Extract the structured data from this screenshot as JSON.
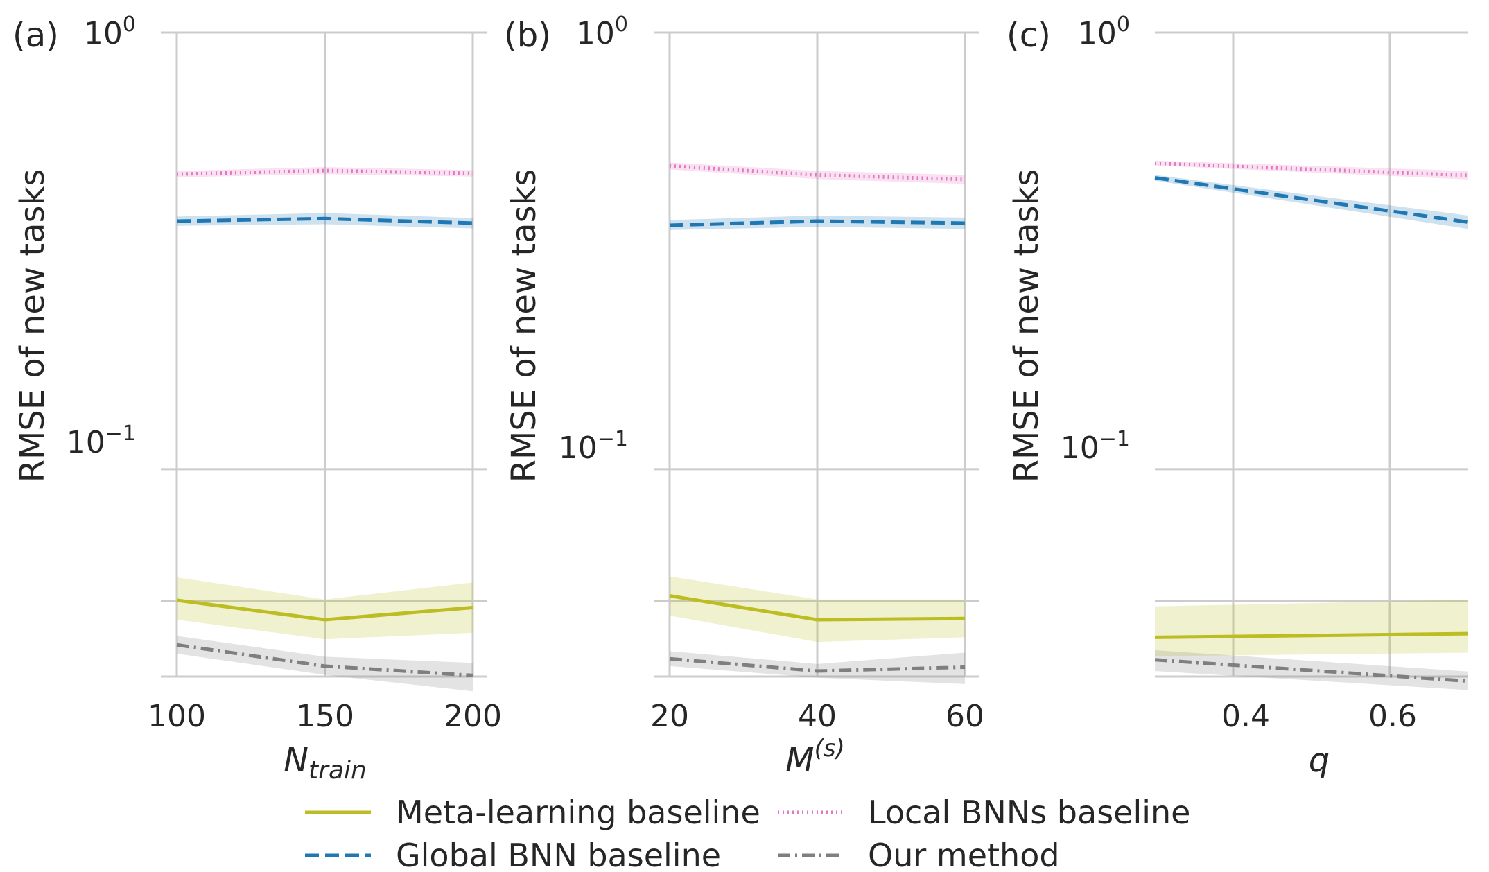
{
  "colors": {
    "meta": "#bcbd22",
    "global": "#1f77b4",
    "local": "#e377c2",
    "ours": "#7f7f7f",
    "grid": "#cccccc",
    "text": "#262626"
  },
  "legend": {
    "entries": [
      {
        "key": "meta",
        "label": "Meta-learning baseline"
      },
      {
        "key": "local",
        "label": "Local BNNs baseline"
      },
      {
        "key": "global",
        "label": "Global BNN baseline"
      },
      {
        "key": "ours",
        "label": "Our method"
      }
    ]
  },
  "chart_data": [
    {
      "type": "line",
      "panel": "(a)",
      "xlabel": "N_train",
      "xlabel_main": "N",
      "xlabel_sub": "train",
      "ylabel": "RMSE of new tasks",
      "yscale": "log",
      "ylim": [
        0.0335,
        1.0
      ],
      "y_ticks": [
        {
          "value": 1.0,
          "base": "10",
          "exp": "0"
        },
        {
          "value": 0.1,
          "base": "10",
          "exp": "−1"
        }
      ],
      "y_minor_grid": [
        0.05
      ],
      "xlim": [
        100,
        200
      ],
      "x_ticks": [
        100,
        150,
        200
      ],
      "x_tick_labels": [
        "100",
        "150",
        "200"
      ],
      "series": [
        {
          "key": "meta",
          "name": "Meta-learning baseline",
          "x": [
            100,
            150,
            200
          ],
          "values": [
            0.0501,
            0.0452,
            0.0482
          ],
          "lower": [
            0.0452,
            0.0408,
            0.0422
          ],
          "upper": [
            0.0565,
            0.0503,
            0.055
          ]
        },
        {
          "key": "global",
          "name": "Global BNN baseline",
          "x": [
            100,
            150,
            200
          ],
          "values": [
            0.37,
            0.375,
            0.366
          ],
          "lower": [
            0.361,
            0.364,
            0.356
          ],
          "upper": [
            0.379,
            0.386,
            0.376
          ]
        },
        {
          "key": "local",
          "name": "Local BNNs baseline",
          "x": [
            100,
            150,
            200
          ],
          "values": [
            0.474,
            0.483,
            0.476
          ],
          "lower": [
            0.466,
            0.474,
            0.468
          ],
          "upper": [
            0.482,
            0.492,
            0.484
          ]
        },
        {
          "key": "ours",
          "name": "Our method",
          "x": [
            100,
            150,
            200
          ],
          "values": [
            0.0396,
            0.0354,
            0.0337
          ],
          "lower": [
            0.0378,
            0.0338,
            0.031
          ],
          "upper": [
            0.0415,
            0.0372,
            0.036
          ]
        }
      ]
    },
    {
      "type": "line",
      "panel": "(b)",
      "xlabel": "M^(s)",
      "xlabel_main": "M",
      "xlabel_sup": "(s)",
      "ylabel": "RMSE of new tasks",
      "yscale": "log",
      "ylim": [
        0.0335,
        1.0
      ],
      "y_ticks": [
        {
          "value": 1.0,
          "base": "10",
          "exp": "0"
        },
        {
          "value": 0.1,
          "base": "10",
          "exp": "−1"
        }
      ],
      "y_minor_grid": [
        0.05
      ],
      "xlim": [
        20,
        60
      ],
      "x_ticks": [
        20,
        40,
        60
      ],
      "x_tick_labels": [
        "20",
        "40",
        "60"
      ],
      "series": [
        {
          "key": "meta",
          "name": "Meta-learning baseline",
          "x": [
            20,
            40,
            60
          ],
          "values": [
            0.0513,
            0.0452,
            0.0455
          ],
          "lower": [
            0.0462,
            0.0402,
            0.0412
          ],
          "upper": [
            0.0568,
            0.0503,
            0.0503
          ]
        },
        {
          "key": "global",
          "name": "Global BNN baseline",
          "x": [
            20,
            40,
            60
          ],
          "values": [
            0.362,
            0.37,
            0.366
          ],
          "lower": [
            0.353,
            0.359,
            0.355
          ],
          "upper": [
            0.372,
            0.381,
            0.377
          ]
        },
        {
          "key": "local",
          "name": "Local BNNs baseline",
          "x": [
            20,
            40,
            60
          ],
          "values": [
            0.495,
            0.472,
            0.461
          ],
          "lower": [
            0.486,
            0.462,
            0.45
          ],
          "upper": [
            0.504,
            0.482,
            0.472
          ]
        },
        {
          "key": "ours",
          "name": "Our method",
          "x": [
            20,
            40,
            60
          ],
          "values": [
            0.0368,
            0.0345,
            0.0352
          ],
          "lower": [
            0.0354,
            0.0333,
            0.0322
          ],
          "upper": [
            0.0383,
            0.0358,
            0.038
          ]
        }
      ]
    },
    {
      "type": "line",
      "panel": "(c)",
      "xlabel": "q",
      "xlabel_main": "q",
      "ylabel": "RMSE of new tasks",
      "yscale": "log",
      "ylim": [
        0.0335,
        1.0
      ],
      "y_ticks": [
        {
          "value": 1.0,
          "base": "10",
          "exp": "0"
        },
        {
          "value": 0.1,
          "base": "10",
          "exp": "−1"
        }
      ],
      "y_minor_grid": [
        0.05
      ],
      "xlim": [
        0.3,
        0.7
      ],
      "x_ticks": [
        0.4,
        0.6
      ],
      "x_tick_labels": [
        "0.4",
        "0.6"
      ],
      "series": [
        {
          "key": "meta",
          "name": "Meta-learning baseline",
          "x": [
            0.3,
            0.7
          ],
          "values": [
            0.0412,
            0.042
          ],
          "lower": [
            0.0373,
            0.038
          ],
          "upper": [
            0.0485,
            0.0502
          ]
        },
        {
          "key": "global",
          "name": "Global BNN baseline",
          "x": [
            0.3,
            0.7
          ],
          "values": [
            0.465,
            0.368
          ],
          "lower": [
            0.458,
            0.355
          ],
          "upper": [
            0.472,
            0.381
          ]
        },
        {
          "key": "local",
          "name": "Local BNNs baseline",
          "x": [
            0.3,
            0.7
          ],
          "values": [
            0.502,
            0.471
          ],
          "lower": [
            0.496,
            0.461
          ],
          "upper": [
            0.509,
            0.482
          ]
        },
        {
          "key": "ours",
          "name": "Our method",
          "x": [
            0.3,
            0.7
          ],
          "values": [
            0.0366,
            0.0327
          ],
          "lower": [
            0.0345,
            0.0312
          ],
          "upper": [
            0.0385,
            0.0344
          ]
        }
      ]
    }
  ]
}
